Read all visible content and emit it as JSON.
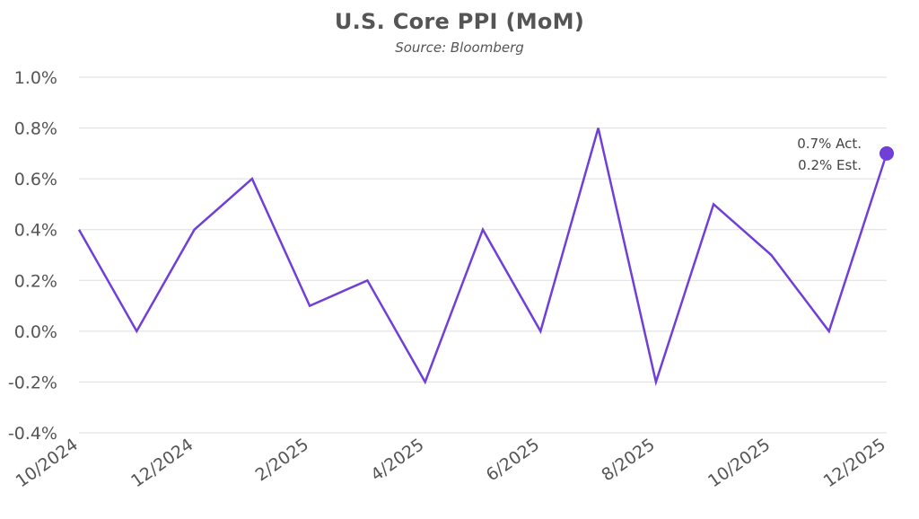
{
  "chart_data": {
    "type": "line",
    "title": "U.S. Core PPI (MoM)",
    "subtitle": "Source: Bloomberg",
    "xlabel": "",
    "ylabel": "",
    "x": [
      "10/2024",
      "11/2024",
      "12/2024",
      "1/2025",
      "2/2025",
      "3/2025",
      "4/2025",
      "5/2025",
      "6/2025",
      "7/2025",
      "8/2025",
      "9/2025",
      "10/2025",
      "11/2025",
      "12/2025"
    ],
    "x_tick_labels": [
      "10/2024",
      "12/2024",
      "2/2025",
      "4/2025",
      "6/2025",
      "8/2025",
      "10/2025",
      "12/2025"
    ],
    "series": [
      {
        "values": [
          0.4,
          0.0,
          0.4,
          0.6,
          0.1,
          0.2,
          -0.2,
          0.4,
          0.0,
          0.8,
          -0.2,
          0.5,
          0.3,
          0.0,
          0.7
        ]
      }
    ],
    "ylim": [
      -0.4,
      1.0
    ],
    "y_ticks": [
      -0.4,
      -0.2,
      0.0,
      0.2,
      0.4,
      0.6,
      0.8,
      1.0
    ],
    "y_tick_labels": [
      "-0.4%",
      "-0.2%",
      "0.0%",
      "0.2%",
      "0.4%",
      "0.6%",
      "0.8%",
      "1.0%"
    ],
    "grid": true,
    "line_color": "#6f3fd8",
    "grid_color": "#dddddd",
    "annotation": {
      "lines": [
        "0.7% Act.",
        "0.2% Est."
      ],
      "point_index": 14
    }
  }
}
